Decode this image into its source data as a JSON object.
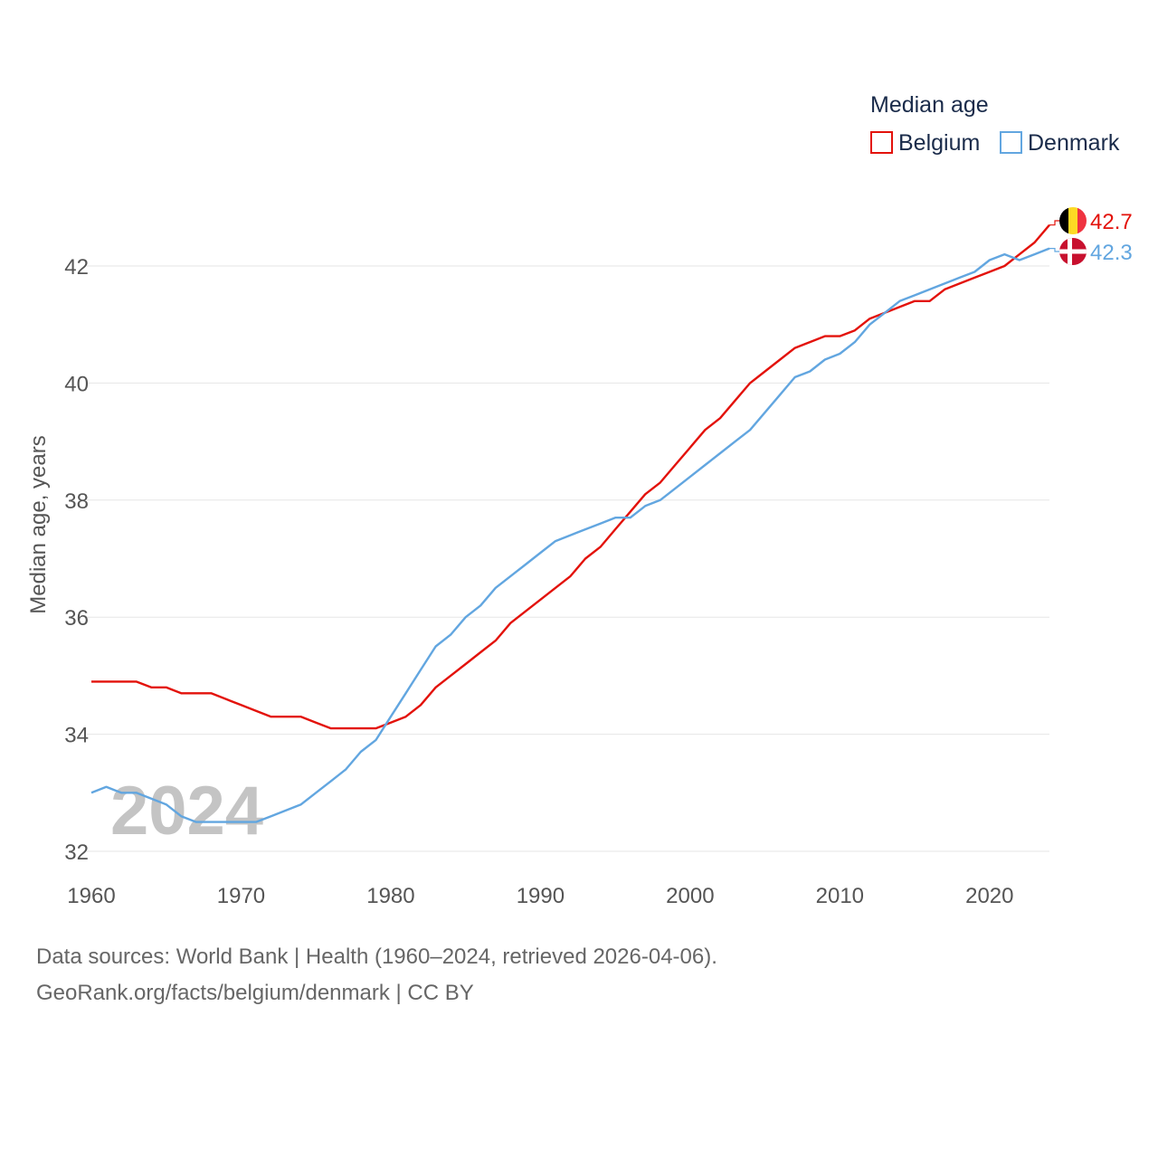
{
  "chart_data": {
    "type": "line",
    "title": "Median age",
    "xlabel": "",
    "ylabel": "Median age, years",
    "xlim": [
      1960,
      2024
    ],
    "ylim": [
      32,
      43
    ],
    "xticks": [
      1960,
      1970,
      1980,
      1990,
      2000,
      2010,
      2020
    ],
    "yticks": [
      32,
      34,
      36,
      38,
      40,
      42
    ],
    "grid": true,
    "legend_position": "top-right",
    "year_watermark": "2024",
    "x": [
      1960,
      1961,
      1962,
      1963,
      1964,
      1965,
      1966,
      1967,
      1968,
      1969,
      1970,
      1971,
      1972,
      1973,
      1974,
      1975,
      1976,
      1977,
      1978,
      1979,
      1980,
      1981,
      1982,
      1983,
      1984,
      1985,
      1986,
      1987,
      1988,
      1989,
      1990,
      1991,
      1992,
      1993,
      1994,
      1995,
      1996,
      1997,
      1998,
      1999,
      2000,
      2001,
      2002,
      2003,
      2004,
      2005,
      2006,
      2007,
      2008,
      2009,
      2010,
      2011,
      2012,
      2013,
      2014,
      2015,
      2016,
      2017,
      2018,
      2019,
      2020,
      2021,
      2022,
      2023,
      2024
    ],
    "series": [
      {
        "name": "Belgium",
        "color": "#e3120b",
        "end_label": "42.7",
        "flag": "belgium-flag",
        "values": [
          34.9,
          34.9,
          34.9,
          34.9,
          34.8,
          34.8,
          34.7,
          34.7,
          34.7,
          34.6,
          34.5,
          34.4,
          34.3,
          34.3,
          34.3,
          34.2,
          34.1,
          34.1,
          34.1,
          34.1,
          34.2,
          34.3,
          34.5,
          34.8,
          35.0,
          35.2,
          35.4,
          35.6,
          35.9,
          36.1,
          36.3,
          36.5,
          36.7,
          37.0,
          37.2,
          37.5,
          37.8,
          38.1,
          38.3,
          38.6,
          38.9,
          39.2,
          39.4,
          39.7,
          40.0,
          40.2,
          40.4,
          40.6,
          40.7,
          40.8,
          40.8,
          40.9,
          41.1,
          41.2,
          41.3,
          41.4,
          41.4,
          41.6,
          41.7,
          41.8,
          41.9,
          42.0,
          42.2,
          42.4,
          42.7
        ]
      },
      {
        "name": "Denmark",
        "color": "#62a6e0",
        "end_label": "42.3",
        "flag": "denmark-flag",
        "values": [
          33.0,
          33.1,
          33.0,
          33.0,
          32.9,
          32.8,
          32.6,
          32.5,
          32.5,
          32.5,
          32.5,
          32.5,
          32.6,
          32.7,
          32.8,
          33.0,
          33.2,
          33.4,
          33.7,
          33.9,
          34.3,
          34.7,
          35.1,
          35.5,
          35.7,
          36.0,
          36.2,
          36.5,
          36.7,
          36.9,
          37.1,
          37.3,
          37.4,
          37.5,
          37.6,
          37.7,
          37.7,
          37.9,
          38.0,
          38.2,
          38.4,
          38.6,
          38.8,
          39.0,
          39.2,
          39.5,
          39.8,
          40.1,
          40.2,
          40.4,
          40.5,
          40.7,
          41.0,
          41.2,
          41.4,
          41.5,
          41.6,
          41.7,
          41.8,
          41.9,
          42.1,
          42.2,
          42.1,
          42.2,
          42.3
        ]
      }
    ]
  },
  "footer": {
    "sources": "Data sources: World Bank | Health (1960–2024, retrieved 2026-04-06).",
    "credit": "GeoRank.org/facts/belgium/denmark | CC BY"
  }
}
